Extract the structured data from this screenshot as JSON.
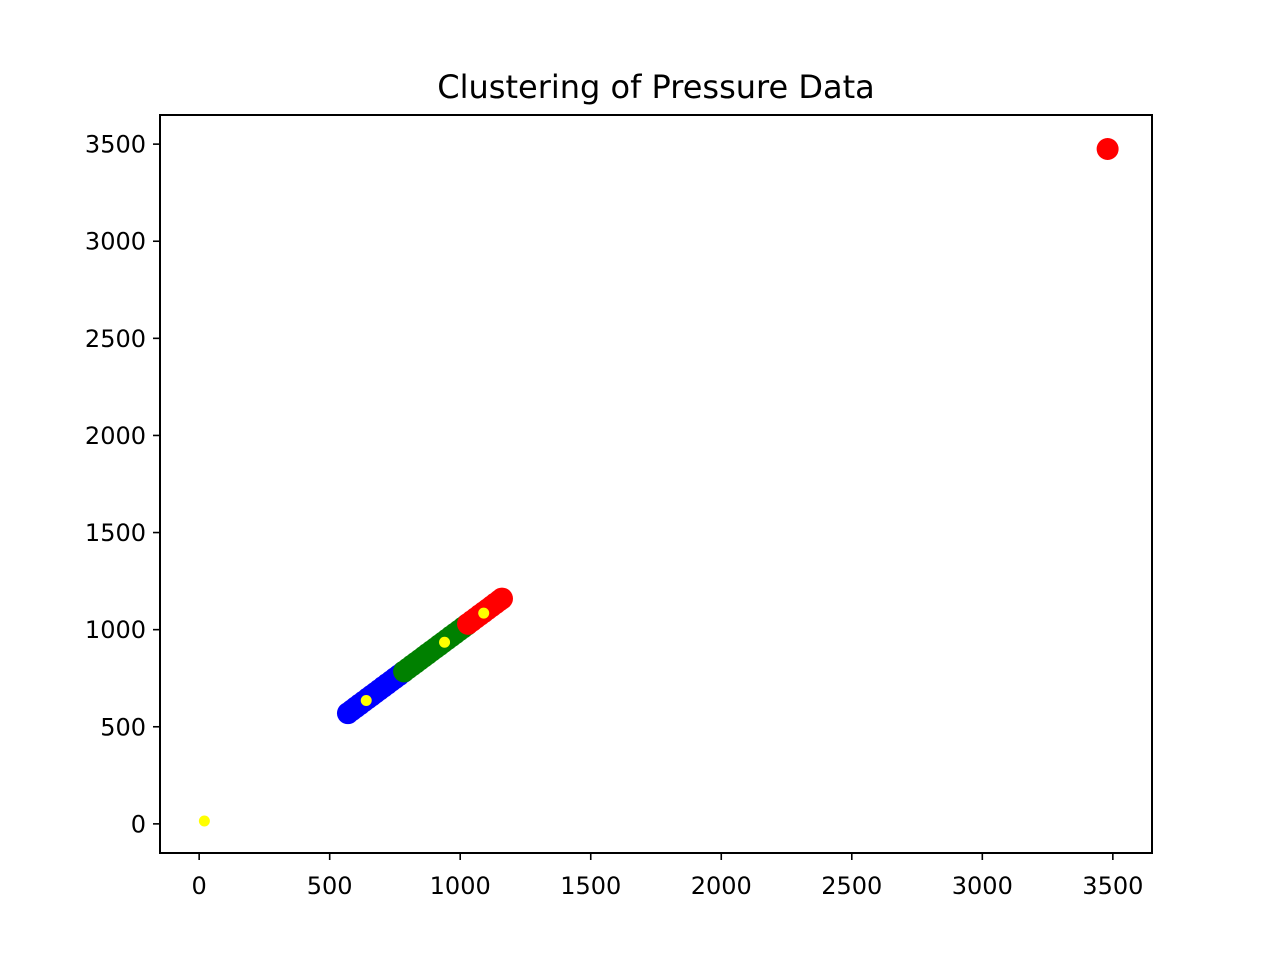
{
  "chart_data": {
    "type": "scatter",
    "title": "Clustering of Pressure Data",
    "xlabel": "",
    "ylabel": "",
    "xlim": [
      -150,
      3650
    ],
    "ylim": [
      -150,
      3650
    ],
    "xticks": [
      0,
      500,
      1000,
      1500,
      2000,
      2500,
      3000,
      3500
    ],
    "yticks": [
      0,
      500,
      1000,
      1500,
      2000,
      2500,
      3000,
      3500
    ],
    "xtick_labels": [
      "0",
      "500",
      "1000",
      "1500",
      "2000",
      "2500",
      "3000",
      "3500"
    ],
    "ytick_labels": [
      "0",
      "500",
      "1000",
      "1500",
      "2000",
      "2500",
      "3000",
      "3500"
    ],
    "grid": false,
    "legend": "none",
    "series": [
      {
        "color": "#0000ff",
        "marker_size": "large",
        "points": [
          [
            570,
            570
          ],
          [
            585,
            585
          ],
          [
            600,
            600
          ],
          [
            615,
            615
          ],
          [
            630,
            630
          ],
          [
            645,
            645
          ],
          [
            660,
            660
          ],
          [
            675,
            675
          ],
          [
            690,
            690
          ],
          [
            705,
            705
          ],
          [
            720,
            720
          ],
          [
            735,
            735
          ],
          [
            750,
            750
          ],
          [
            765,
            765
          ],
          [
            780,
            780
          ]
        ]
      },
      {
        "color": "#008000",
        "marker_size": "large",
        "points": [
          [
            785,
            785
          ],
          [
            800,
            800
          ],
          [
            815,
            815
          ],
          [
            830,
            830
          ],
          [
            845,
            845
          ],
          [
            860,
            860
          ],
          [
            875,
            875
          ],
          [
            890,
            890
          ],
          [
            905,
            905
          ],
          [
            920,
            920
          ],
          [
            935,
            935
          ],
          [
            950,
            950
          ],
          [
            965,
            965
          ],
          [
            980,
            980
          ],
          [
            995,
            995
          ],
          [
            1010,
            1010
          ],
          [
            1025,
            1025
          ]
        ]
      },
      {
        "color": "#ff0000",
        "marker_size": "large",
        "points": [
          [
            1030,
            1030
          ],
          [
            1045,
            1045
          ],
          [
            1060,
            1060
          ],
          [
            1075,
            1075
          ],
          [
            1090,
            1090
          ],
          [
            1105,
            1105
          ],
          [
            1120,
            1120
          ],
          [
            1135,
            1135
          ],
          [
            1150,
            1150
          ],
          [
            1160,
            1160
          ],
          [
            3480,
            3475
          ]
        ]
      },
      {
        "color": "#ffff00",
        "marker_size": "small",
        "points": [
          [
            20,
            15
          ],
          [
            640,
            635
          ],
          [
            940,
            935
          ],
          [
            1090,
            1085
          ]
        ]
      }
    ]
  }
}
